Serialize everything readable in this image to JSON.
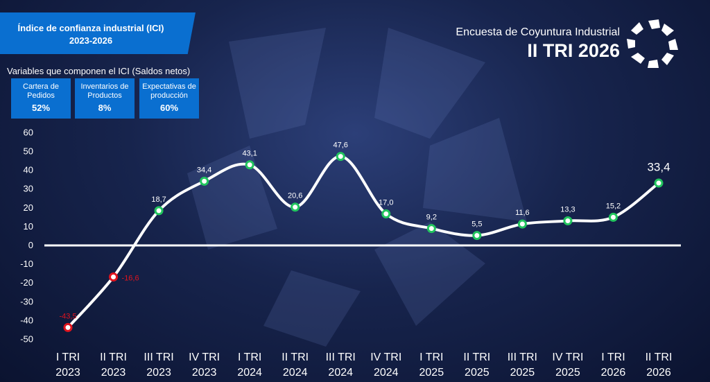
{
  "header": {
    "title": "Índice de confianza industrial (ICI) 2023-2026",
    "survey": "Encuesta de Coyuntura Industrial",
    "period": "II TRI 2026"
  },
  "indicators": {
    "title": "Variables que componen el ICI (Saldos netos)",
    "items": [
      {
        "label": "Cartera de Pedidos",
        "value": "52%"
      },
      {
        "label": "Inventarios de Productos",
        "value": "8%"
      },
      {
        "label": "Expectativas de producción",
        "value": "60%"
      }
    ]
  },
  "chart_data": {
    "type": "line",
    "categories": [
      "I TRI 2023",
      "II TRI 2023",
      "III TRI 2023",
      "IV TRI 2023",
      "I TRI 2024",
      "II TRI 2024",
      "III TRI 2024",
      "IV TRI 2024",
      "I TRI 2025",
      "II TRI 2025",
      "III TRI 2025",
      "IV TRI 2025",
      "I TRI 2026",
      "II TRI 2026"
    ],
    "values": [
      -43.5,
      -16.6,
      18.7,
      34.4,
      43.1,
      20.6,
      47.6,
      17.0,
      9.2,
      5.5,
      11.6,
      13.3,
      15.2,
      33.4
    ],
    "value_labels": [
      "-43,5",
      "-16,6",
      "18,7",
      "34,4",
      "43,1",
      "20,6",
      "47,6",
      "17,0",
      "9,2",
      "5,5",
      "11,6",
      "13,3",
      "15,2",
      "33,4"
    ],
    "color": "#ffffff",
    "positive_color": "#22c55e",
    "negative_color": "#e0141e",
    "ylim": [
      -50,
      60
    ],
    "yticks": [
      -50,
      -40,
      -30,
      -20,
      -10,
      0,
      10,
      20,
      30,
      40,
      50,
      60
    ]
  }
}
